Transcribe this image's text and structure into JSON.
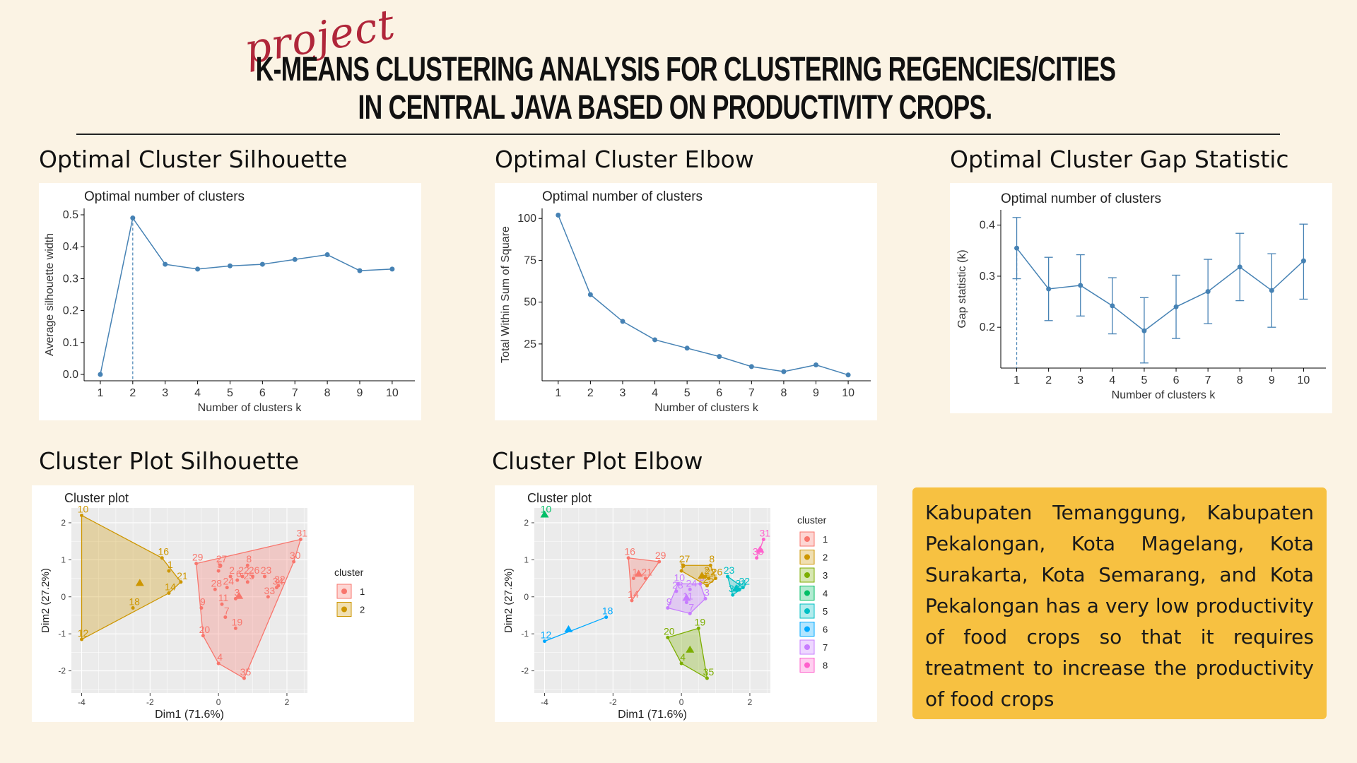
{
  "header": {
    "script_label": "project",
    "title_line1": "K-MEANS CLUSTERING ANALYSIS FOR CLUSTERING REGENCIES/CITIES",
    "title_line2": "IN CENTRAL JAVA BASED ON PRODUCTIVITY CROPS."
  },
  "sections": {
    "silhouette": "Optimal Cluster Silhouette",
    "elbow": "Optimal Cluster Elbow",
    "gap": "Optimal Cluster Gap Statistic",
    "plot_silhouette": "Cluster Plot Silhouette",
    "plot_elbow": "Cluster Plot Elbow"
  },
  "conclusion": "Kabupaten Temanggung, Kabupaten Pekalongan, Kota Magelang, Kota Surakarta, Kota Semarang, and Kota Pekalongan has a very low productivity of food crops so that it requires treatment to increase the productivity of food crops",
  "colors": {
    "line": "#4682b4",
    "c1": "#f8766d",
    "c2": "#cd9600",
    "c3": "#7cae00",
    "c4": "#00be67",
    "c5": "#00bfc4",
    "c6": "#00a9ff",
    "c7": "#c77cff",
    "c8": "#ff61cc"
  },
  "chart_data": [
    {
      "type": "line",
      "title": "Optimal number of clusters",
      "xlabel": "Number of clusters k",
      "ylabel": "Average silhouette width",
      "x": [
        1,
        2,
        3,
        4,
        5,
        6,
        7,
        8,
        9,
        10
      ],
      "y": [
        0.0,
        0.49,
        0.345,
        0.33,
        0.34,
        0.345,
        0.36,
        0.375,
        0.325,
        0.33
      ],
      "ylim": [
        -0.02,
        0.52
      ],
      "yticks": [
        "0.0",
        "0.1",
        "0.2",
        "0.3",
        "0.4",
        "0.5"
      ],
      "optimal_k": 2
    },
    {
      "type": "line",
      "title": "Optimal number of clusters",
      "xlabel": "Number of clusters k",
      "ylabel": "Total Within Sum of Square",
      "x": [
        1,
        2,
        3,
        4,
        5,
        6,
        7,
        8,
        9,
        10
      ],
      "y": [
        102,
        54.5,
        38.5,
        27.5,
        22.5,
        17.5,
        11.5,
        8.5,
        12.5,
        6.5
      ],
      "ylim": [
        3,
        106
      ],
      "yticks": [
        "25",
        "50",
        "75",
        "100"
      ]
    },
    {
      "type": "line",
      "title": "Optimal number of clusters",
      "xlabel": "Number of clusters k",
      "ylabel": "Gap statistic (k)",
      "x": [
        1,
        2,
        3,
        4,
        5,
        6,
        7,
        8,
        9,
        10
      ],
      "y": [
        0.355,
        0.275,
        0.282,
        0.242,
        0.193,
        0.24,
        0.27,
        0.318,
        0.272,
        0.33
      ],
      "err_low": [
        0.295,
        0.213,
        0.222,
        0.187,
        0.13,
        0.178,
        0.207,
        0.252,
        0.2,
        0.255
      ],
      "err_high": [
        0.415,
        0.337,
        0.342,
        0.297,
        0.258,
        0.302,
        0.333,
        0.384,
        0.344,
        0.402
      ],
      "ylim": [
        0.12,
        0.43
      ],
      "yticks": [
        "0.2",
        "0.3",
        "0.4"
      ],
      "optimal_k": 1
    },
    {
      "type": "scatter",
      "title": "Cluster plot",
      "xlabel": "Dim1 (71.6%)",
      "ylabel": "Dim2 (27.2%)",
      "xlim": [
        -4.3,
        2.6
      ],
      "ylim": [
        -2.6,
        2.4
      ],
      "xticks": [
        "-4",
        "-2",
        "0",
        "2"
      ],
      "yticks": [
        "2",
        "1",
        "0",
        "-1",
        "-2"
      ],
      "legend_title": "cluster",
      "legend": [
        "1",
        "2"
      ],
      "points": [
        {
          "label": "10",
          "x": -4.0,
          "y": 2.2,
          "c": 2
        },
        {
          "label": "16",
          "x": -1.65,
          "y": 1.05,
          "c": 2
        },
        {
          "label": "21",
          "x": -1.1,
          "y": 0.4,
          "c": 2
        },
        {
          "label": "1",
          "x": -1.45,
          "y": 0.7,
          "c": 2
        },
        {
          "label": "14",
          "x": -1.45,
          "y": 0.1,
          "c": 2
        },
        {
          "label": "18",
          "x": -2.5,
          "y": -0.3,
          "c": 2
        },
        {
          "label": "12",
          "x": -4.0,
          "y": -1.15,
          "c": 2
        },
        {
          "label": "29",
          "x": -0.65,
          "y": 0.9,
          "c": 1
        },
        {
          "label": "27",
          "x": 0.05,
          "y": 0.85,
          "c": 1
        },
        {
          "label": "8",
          "x": 0.85,
          "y": 0.85,
          "c": 1
        },
        {
          "label": "31",
          "x": 2.4,
          "y": 1.55,
          "c": 1
        },
        {
          "label": "30",
          "x": 2.2,
          "y": 0.95,
          "c": 1
        },
        {
          "label": "5",
          "x": 0.0,
          "y": 0.7,
          "c": 1
        },
        {
          "label": "2",
          "x": 0.35,
          "y": 0.55,
          "c": 1
        },
        {
          "label": "22",
          "x": 0.7,
          "y": 0.55,
          "c": 1
        },
        {
          "label": "26",
          "x": 1.0,
          "y": 0.55,
          "c": 1
        },
        {
          "label": "23",
          "x": 1.35,
          "y": 0.55,
          "c": 1
        },
        {
          "label": "6",
          "x": 0.55,
          "y": 0.45,
          "c": 1
        },
        {
          "label": "25",
          "x": 0.85,
          "y": 0.4,
          "c": 1
        },
        {
          "label": "24",
          "x": 0.25,
          "y": 0.25,
          "c": 1
        },
        {
          "label": "28",
          "x": -0.1,
          "y": 0.2,
          "c": 1
        },
        {
          "label": "32",
          "x": 1.75,
          "y": 0.3,
          "c": 1
        },
        {
          "label": "34",
          "x": 1.7,
          "y": 0.25,
          "c": 1
        },
        {
          "label": "33",
          "x": 1.45,
          "y": 0.0,
          "c": 1
        },
        {
          "label": "11",
          "x": 0.1,
          "y": -0.2,
          "c": 1
        },
        {
          "label": "3",
          "x": 0.5,
          "y": -0.05,
          "c": 1
        },
        {
          "label": "9",
          "x": -0.5,
          "y": -0.3,
          "c": 1
        },
        {
          "label": "7",
          "x": 0.2,
          "y": -0.55,
          "c": 1
        },
        {
          "label": "19",
          "x": 0.5,
          "y": -0.85,
          "c": 1
        },
        {
          "label": "20",
          "x": -0.45,
          "y": -1.05,
          "c": 1
        },
        {
          "label": "4",
          "x": 0.0,
          "y": -1.8,
          "c": 1
        },
        {
          "label": "35",
          "x": 0.75,
          "y": -2.2,
          "c": 1
        }
      ],
      "centroids": [
        {
          "x": 0.6,
          "y": 0.0,
          "c": 1
        },
        {
          "x": -2.3,
          "y": 0.35,
          "c": 2
        }
      ]
    },
    {
      "type": "scatter",
      "title": "Cluster plot",
      "xlabel": "Dim1 (71.6%)",
      "ylabel": "Dim2 (27.2%)",
      "xlim": [
        -4.3,
        2.6
      ],
      "ylim": [
        -2.6,
        2.4
      ],
      "xticks": [
        "-4",
        "-2",
        "0",
        "2"
      ],
      "yticks": [
        "2",
        "1",
        "0",
        "-1",
        "-2"
      ],
      "legend_title": "cluster",
      "legend": [
        "1",
        "2",
        "3",
        "4",
        "5",
        "6",
        "7",
        "8"
      ],
      "points": [
        {
          "label": "10",
          "x": -4.0,
          "y": 2.2,
          "c": 4
        },
        {
          "label": "16",
          "x": -1.55,
          "y": 1.05,
          "c": 1
        },
        {
          "label": "21",
          "x": -1.05,
          "y": 0.5,
          "c": 1
        },
        {
          "label": "1",
          "x": -1.4,
          "y": 0.5,
          "c": 1
        },
        {
          "label": "14",
          "x": -1.45,
          "y": -0.1,
          "c": 1
        },
        {
          "label": "29",
          "x": -0.65,
          "y": 0.95,
          "c": 1
        },
        {
          "label": "27",
          "x": 0.05,
          "y": 0.85,
          "c": 2
        },
        {
          "label": "8",
          "x": 0.85,
          "y": 0.85,
          "c": 2
        },
        {
          "label": "5",
          "x": 0.0,
          "y": 0.7,
          "c": 2
        },
        {
          "label": "2",
          "x": 0.7,
          "y": 0.55,
          "c": 2
        },
        {
          "label": "22",
          "x": 0.8,
          "y": 0.5,
          "c": 2
        },
        {
          "label": "26",
          "x": 1.0,
          "y": 0.5,
          "c": 2
        },
        {
          "label": "25",
          "x": 0.75,
          "y": 0.3,
          "c": 2
        },
        {
          "label": "23",
          "x": 1.35,
          "y": 0.55,
          "c": 5
        },
        {
          "label": "32",
          "x": 1.8,
          "y": 0.25,
          "c": 5
        },
        {
          "label": "34",
          "x": 1.7,
          "y": 0.2,
          "c": 5
        },
        {
          "label": "33",
          "x": 1.5,
          "y": 0.05,
          "c": 5
        },
        {
          "label": "31",
          "x": 2.4,
          "y": 1.55,
          "c": 8
        },
        {
          "label": "30",
          "x": 2.2,
          "y": 1.05,
          "c": 8
        },
        {
          "label": "10b",
          "x": -0.1,
          "y": 0.35,
          "c": 7
        },
        {
          "label": "28",
          "x": -0.15,
          "y": 0.15,
          "c": 7
        },
        {
          "label": "24",
          "x": 0.25,
          "y": 0.2,
          "c": 7
        },
        {
          "label": "6",
          "x": 0.55,
          "y": 0.35,
          "c": 7
        },
        {
          "label": "3",
          "x": 0.7,
          "y": -0.05,
          "c": 7
        },
        {
          "label": "9",
          "x": -0.4,
          "y": -0.3,
          "c": 7
        },
        {
          "label": "11",
          "x": 0.15,
          "y": -0.15,
          "c": 7
        },
        {
          "label": "7",
          "x": 0.25,
          "y": -0.45,
          "c": 7
        },
        {
          "label": "19",
          "x": 0.5,
          "y": -0.85,
          "c": 3
        },
        {
          "label": "20",
          "x": -0.4,
          "y": -1.1,
          "c": 3
        },
        {
          "label": "4",
          "x": 0.0,
          "y": -1.8,
          "c": 3
        },
        {
          "label": "35",
          "x": 0.75,
          "y": -2.2,
          "c": 3
        },
        {
          "label": "18",
          "x": -2.2,
          "y": -0.55,
          "c": 6
        },
        {
          "label": "12",
          "x": -4.0,
          "y": -1.2,
          "c": 6
        }
      ],
      "centroids": [
        {
          "x": -1.25,
          "y": 0.6,
          "c": 1
        },
        {
          "x": 0.6,
          "y": 0.55,
          "c": 2
        },
        {
          "x": 0.25,
          "y": -1.45,
          "c": 3
        },
        {
          "x": -4.0,
          "y": 2.2,
          "c": 4
        },
        {
          "x": 1.6,
          "y": 0.2,
          "c": 5
        },
        {
          "x": -3.3,
          "y": -0.9,
          "c": 6
        },
        {
          "x": 0.15,
          "y": -0.05,
          "c": 7
        },
        {
          "x": 2.3,
          "y": 1.25,
          "c": 8
        }
      ]
    }
  ]
}
